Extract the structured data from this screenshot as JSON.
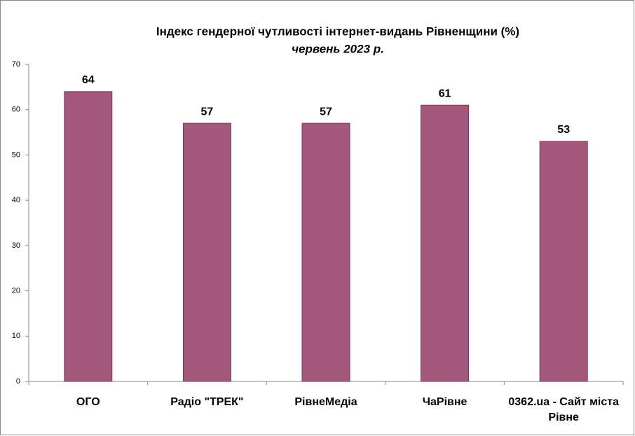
{
  "chart_data": {
    "type": "bar",
    "title": "Індекс гендерної чутливості інтернет-видань Рівненщини (%)",
    "subtitle": "червень 2023 р.",
    "categories": [
      "ОГО",
      "Радіо \"ТРЕК\"",
      "РівнеМедіа",
      "ЧаРівне",
      "0362.ua - Сайт міста Рівне"
    ],
    "values": [
      64,
      57,
      57,
      61,
      53
    ],
    "color": "#a2577b",
    "ylim": [
      0,
      70
    ],
    "yticks": [
      0,
      10,
      20,
      30,
      40,
      50,
      60,
      70
    ],
    "grid": false
  }
}
